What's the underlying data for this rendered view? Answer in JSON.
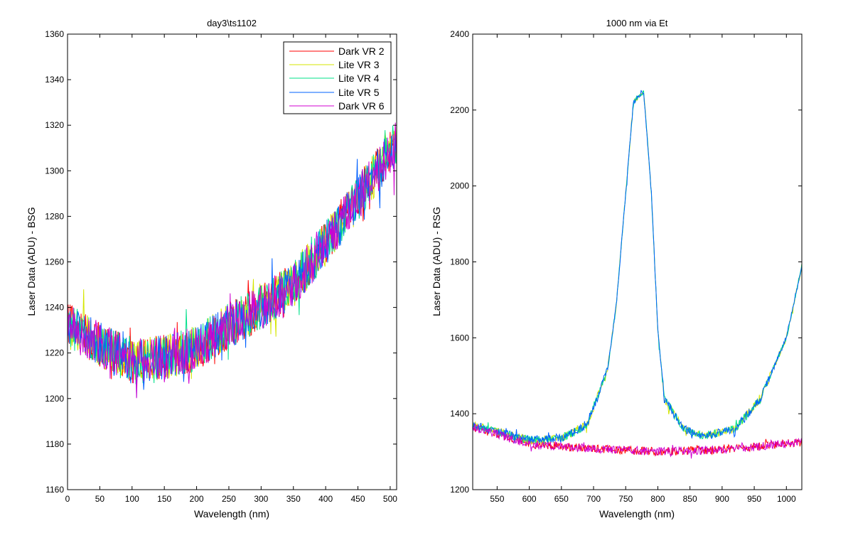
{
  "chart_data": [
    {
      "type": "line",
      "title": "day3\\ts1102",
      "xlabel": "Wavelength (nm)",
      "ylabel": "Laser Data (ADU) - BSG",
      "xlim": [
        0,
        510
      ],
      "ylim": [
        1160,
        1360
      ],
      "x_ticks": [
        0,
        50,
        100,
        150,
        200,
        250,
        300,
        350,
        400,
        450,
        500
      ],
      "y_ticks": [
        1160,
        1180,
        1200,
        1220,
        1240,
        1260,
        1280,
        1300,
        1320,
        1340,
        1360
      ],
      "legend_position": "top-right",
      "series": [
        {
          "name": "Dark VR 2",
          "color": "#ff0000",
          "key_points": [
            [
              0,
              1232
            ],
            [
              50,
              1224
            ],
            [
              100,
              1216
            ],
            [
              150,
              1218
            ],
            [
              200,
              1222
            ],
            [
              250,
              1232
            ],
            [
              300,
              1240
            ],
            [
              350,
              1250
            ],
            [
              400,
              1268
            ],
            [
              450,
              1288
            ],
            [
              510,
              1312
            ]
          ]
        },
        {
          "name": "Lite VR 3",
          "color": "#d4e600",
          "key_points": [
            [
              0,
              1232
            ],
            [
              50,
              1224
            ],
            [
              100,
              1216
            ],
            [
              150,
              1218
            ],
            [
              200,
              1222
            ],
            [
              250,
              1232
            ],
            [
              300,
              1240
            ],
            [
              350,
              1250
            ],
            [
              400,
              1268
            ],
            [
              450,
              1288
            ],
            [
              510,
              1312
            ]
          ]
        },
        {
          "name": "Lite VR 4",
          "color": "#00e08a",
          "key_points": [
            [
              0,
              1232
            ],
            [
              50,
              1224
            ],
            [
              100,
              1216
            ],
            [
              150,
              1218
            ],
            [
              200,
              1222
            ],
            [
              250,
              1232
            ],
            [
              300,
              1240
            ],
            [
              350,
              1250
            ],
            [
              400,
              1268
            ],
            [
              450,
              1288
            ],
            [
              510,
              1312
            ]
          ]
        },
        {
          "name": "Lite VR 5",
          "color": "#0060ff",
          "key_points": [
            [
              0,
              1232
            ],
            [
              50,
              1224
            ],
            [
              100,
              1216
            ],
            [
              150,
              1218
            ],
            [
              200,
              1222
            ],
            [
              250,
              1232
            ],
            [
              300,
              1240
            ],
            [
              350,
              1250
            ],
            [
              400,
              1268
            ],
            [
              450,
              1288
            ],
            [
              510,
              1312
            ]
          ]
        },
        {
          "name": "Dark VR 6",
          "color": "#d000d0",
          "key_points": [
            [
              0,
              1232
            ],
            [
              50,
              1224
            ],
            [
              100,
              1216
            ],
            [
              150,
              1218
            ],
            [
              200,
              1222
            ],
            [
              250,
              1232
            ],
            [
              300,
              1240
            ],
            [
              350,
              1250
            ],
            [
              400,
              1268
            ],
            [
              450,
              1288
            ],
            [
              510,
              1312
            ]
          ]
        }
      ]
    },
    {
      "type": "line",
      "title": "1000 nm via Et",
      "xlabel": "Wavelength (nm)",
      "ylabel": "Laser Data (ADU) - RSG",
      "xlim": [
        512,
        1024
      ],
      "ylim": [
        1200,
        2400
      ],
      "x_ticks": [
        550,
        600,
        650,
        700,
        750,
        800,
        850,
        900,
        950,
        1000
      ],
      "y_ticks": [
        1200,
        1400,
        1600,
        1800,
        2000,
        2200,
        2400
      ],
      "series": [
        {
          "name": "Dark VR 2",
          "color": "#ff0000",
          "key_points": [
            [
              512,
              1365
            ],
            [
              600,
              1320
            ],
            [
              700,
              1308
            ],
            [
              800,
              1300
            ],
            [
              900,
              1305
            ],
            [
              1024,
              1325
            ]
          ]
        },
        {
          "name": "Lite VR 3",
          "color": "#d4e600",
          "key_points": [
            [
              512,
              1370
            ],
            [
              600,
              1330
            ],
            [
              650,
              1335
            ],
            [
              690,
              1370
            ],
            [
              722,
              1520
            ],
            [
              735,
              1680
            ],
            [
              745,
              1880
            ],
            [
              762,
              2220
            ],
            [
              778,
              2250
            ],
            [
              790,
              1980
            ],
            [
              800,
              1620
            ],
            [
              810,
              1440
            ],
            [
              840,
              1360
            ],
            [
              870,
              1340
            ],
            [
              920,
              1360
            ],
            [
              960,
              1440
            ],
            [
              1000,
              1600
            ],
            [
              1024,
              1790
            ]
          ]
        },
        {
          "name": "Lite VR 4",
          "color": "#00e08a",
          "key_points": [
            [
              512,
              1370
            ],
            [
              600,
              1330
            ],
            [
              650,
              1335
            ],
            [
              690,
              1370
            ],
            [
              722,
              1520
            ],
            [
              735,
              1680
            ],
            [
              745,
              1880
            ],
            [
              762,
              2220
            ],
            [
              778,
              2250
            ],
            [
              790,
              1980
            ],
            [
              800,
              1620
            ],
            [
              810,
              1440
            ],
            [
              840,
              1360
            ],
            [
              870,
              1340
            ],
            [
              920,
              1360
            ],
            [
              960,
              1440
            ],
            [
              1000,
              1600
            ],
            [
              1024,
              1790
            ]
          ]
        },
        {
          "name": "Lite VR 5",
          "color": "#0060ff",
          "key_points": [
            [
              512,
              1370
            ],
            [
              600,
              1330
            ],
            [
              650,
              1335
            ],
            [
              690,
              1370
            ],
            [
              722,
              1520
            ],
            [
              735,
              1680
            ],
            [
              745,
              1880
            ],
            [
              762,
              2220
            ],
            [
              778,
              2250
            ],
            [
              790,
              1980
            ],
            [
              800,
              1620
            ],
            [
              810,
              1440
            ],
            [
              840,
              1360
            ],
            [
              870,
              1340
            ],
            [
              920,
              1360
            ],
            [
              960,
              1440
            ],
            [
              1000,
              1600
            ],
            [
              1024,
              1790
            ]
          ]
        },
        {
          "name": "Dark VR 6",
          "color": "#d000d0",
          "key_points": [
            [
              512,
              1365
            ],
            [
              600,
              1320
            ],
            [
              700,
              1308
            ],
            [
              800,
              1300
            ],
            [
              900,
              1305
            ],
            [
              1024,
              1325
            ]
          ]
        }
      ]
    }
  ]
}
